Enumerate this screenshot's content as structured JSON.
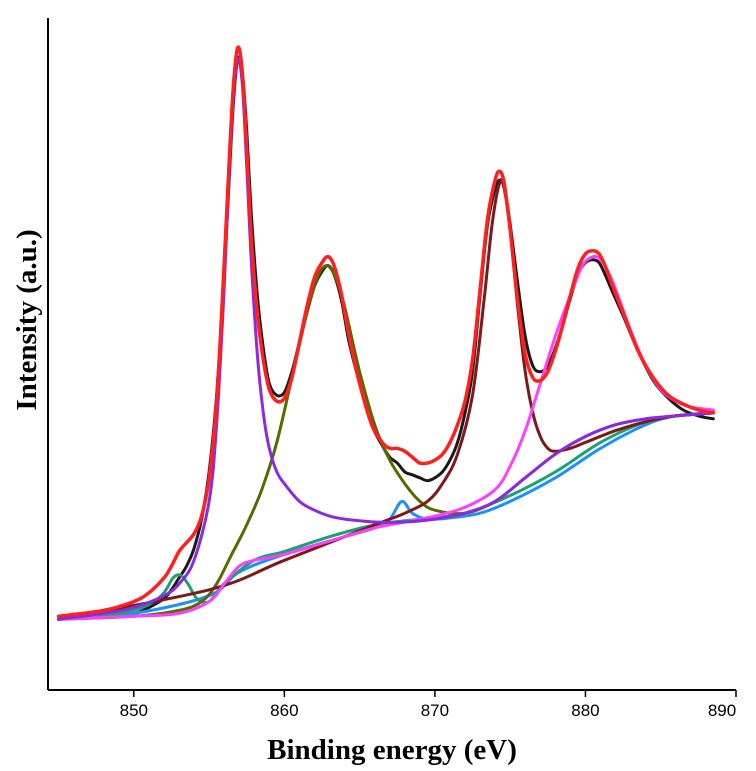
{
  "chart_data": {
    "type": "line",
    "title": "",
    "xlabel": "Binding energy (eV)",
    "ylabel": "Intensity (a.u.)",
    "xlim": [
      844.3,
      890
    ],
    "ylim": [
      -0.12,
      1.02
    ],
    "x_ticks": [
      850,
      860,
      870,
      880,
      890
    ],
    "x_tick_labels": [
      "850",
      "860",
      "870",
      "880",
      "890"
    ],
    "y_tick_labels_shown": false,
    "grid": false,
    "legend": "none",
    "series": [
      {
        "color": "#ff2020",
        "role": "fitted envelope",
        "x": [
          845,
          848,
          850,
          851,
          852,
          852.5,
          853,
          853.5,
          854,
          854.5,
          855,
          855.5,
          856,
          856.3,
          856.6,
          856.9,
          857.2,
          857.5,
          857.8,
          858.2,
          858.6,
          859,
          859.5,
          860,
          860.5,
          861,
          861.5,
          862,
          862.5,
          862.9,
          863.3,
          863.8,
          864.3,
          865,
          865.8,
          866.5,
          867,
          867.5,
          868,
          868.5,
          869,
          869.5,
          870,
          870.5,
          871,
          871.5,
          872,
          872.5,
          873,
          873.5,
          874,
          874.3,
          874.6,
          875,
          875.5,
          876,
          876.5,
          877,
          877.5,
          878,
          878.5,
          879,
          879.5,
          880,
          880.5,
          880.9,
          881.3,
          881.8,
          882.5,
          883.5,
          884.5,
          885.5,
          886.5,
          887.5,
          888.5
        ],
        "y": [
          0.005,
          0.015,
          0.03,
          0.045,
          0.07,
          0.09,
          0.115,
          0.13,
          0.145,
          0.175,
          0.24,
          0.37,
          0.6,
          0.76,
          0.9,
          0.97,
          0.93,
          0.8,
          0.65,
          0.52,
          0.44,
          0.39,
          0.37,
          0.375,
          0.41,
          0.47,
          0.53,
          0.58,
          0.605,
          0.615,
          0.6,
          0.55,
          0.48,
          0.4,
          0.33,
          0.3,
          0.29,
          0.29,
          0.285,
          0.275,
          0.265,
          0.265,
          0.27,
          0.28,
          0.3,
          0.33,
          0.37,
          0.44,
          0.56,
          0.68,
          0.745,
          0.76,
          0.74,
          0.66,
          0.54,
          0.45,
          0.41,
          0.405,
          0.42,
          0.455,
          0.5,
          0.55,
          0.595,
          0.62,
          0.625,
          0.62,
          0.6,
          0.565,
          0.52,
          0.455,
          0.41,
          0.38,
          0.365,
          0.355,
          0.35
        ]
      },
      {
        "color": "#1a1a1a",
        "role": "experimental data",
        "x": [
          845,
          848,
          850,
          851,
          852,
          852.5,
          853,
          853.5,
          854,
          854.5,
          855,
          855.5,
          856,
          856.3,
          856.6,
          856.9,
          857.2,
          857.5,
          857.8,
          858.2,
          858.6,
          859,
          859.5,
          860,
          860.5,
          861,
          861.5,
          862,
          862.5,
          862.9,
          863.3,
          863.8,
          864.3,
          865,
          865.8,
          866.5,
          867,
          867.5,
          868,
          868.5,
          869,
          869.5,
          870,
          870.5,
          871,
          871.5,
          872,
          872.5,
          873,
          873.5,
          874,
          874.3,
          874.6,
          875,
          875.5,
          876,
          876.5,
          877,
          877.5,
          878,
          878.5,
          879,
          879.5,
          880,
          880.5,
          880.9,
          881.3,
          881.8,
          882.5,
          883.5,
          884.5,
          885.5,
          886.5,
          887.5,
          888.5
        ],
        "y": [
          0.0,
          0.005,
          0.01,
          0.02,
          0.035,
          0.05,
          0.07,
          0.09,
          0.12,
          0.17,
          0.25,
          0.38,
          0.58,
          0.73,
          0.87,
          0.95,
          0.93,
          0.83,
          0.69,
          0.55,
          0.46,
          0.4,
          0.38,
          0.385,
          0.42,
          0.47,
          0.52,
          0.565,
          0.59,
          0.6,
          0.585,
          0.54,
          0.47,
          0.4,
          0.33,
          0.295,
          0.275,
          0.265,
          0.25,
          0.245,
          0.24,
          0.235,
          0.24,
          0.25,
          0.27,
          0.3,
          0.35,
          0.42,
          0.55,
          0.67,
          0.73,
          0.745,
          0.735,
          0.67,
          0.57,
          0.48,
          0.43,
          0.42,
          0.43,
          0.46,
          0.5,
          0.545,
          0.585,
          0.605,
          0.61,
          0.605,
          0.585,
          0.555,
          0.515,
          0.455,
          0.405,
          0.375,
          0.355,
          0.345,
          0.34
        ]
      },
      {
        "color": "#8a2be2",
        "role": "fitted component",
        "x": [
          845,
          848,
          850,
          852,
          853,
          854,
          855,
          855.5,
          856,
          856.3,
          856.6,
          856.9,
          857.2,
          857.5,
          857.8,
          858.2,
          858.6,
          859,
          859.5,
          860,
          861,
          862,
          863,
          864,
          866,
          868,
          870,
          872,
          874,
          876,
          878,
          880,
          882,
          884,
          886,
          888.5
        ],
        "y": [
          0.0,
          0.01,
          0.02,
          0.04,
          0.06,
          0.1,
          0.2,
          0.33,
          0.56,
          0.74,
          0.88,
          0.95,
          0.91,
          0.77,
          0.61,
          0.45,
          0.35,
          0.29,
          0.25,
          0.23,
          0.2,
          0.185,
          0.175,
          0.17,
          0.165,
          0.165,
          0.17,
          0.18,
          0.2,
          0.24,
          0.28,
          0.31,
          0.33,
          0.34,
          0.345,
          0.35
        ]
      },
      {
        "color": "#556b00",
        "role": "fitted component",
        "x": [
          845,
          850,
          853,
          854.5,
          855.5,
          856.5,
          857.5,
          858.5,
          859.5,
          860.5,
          861.5,
          862.2,
          862.8,
          863.4,
          864,
          865,
          866,
          867,
          868,
          869,
          870,
          872,
          874,
          876,
          878,
          880,
          882,
          884,
          886,
          888.5
        ],
        "y": [
          0.0,
          0.005,
          0.015,
          0.03,
          0.06,
          0.11,
          0.16,
          0.22,
          0.3,
          0.41,
          0.52,
          0.58,
          0.6,
          0.58,
          0.53,
          0.42,
          0.33,
          0.27,
          0.23,
          0.2,
          0.185,
          0.18,
          0.2,
          0.24,
          0.28,
          0.31,
          0.33,
          0.34,
          0.345,
          0.35
        ]
      },
      {
        "color": "#7a1a1a",
        "role": "fitted component",
        "x": [
          845,
          855,
          860,
          866,
          868,
          869.5,
          870.5,
          871.5,
          872.5,
          873.3,
          873.8,
          874.3,
          874.6,
          875,
          875.5,
          876,
          876.5,
          877,
          877.5,
          878,
          879,
          880,
          882,
          884,
          886,
          888.5
        ],
        "y": [
          0.0,
          0.05,
          0.1,
          0.16,
          0.18,
          0.2,
          0.23,
          0.28,
          0.38,
          0.55,
          0.67,
          0.74,
          0.73,
          0.66,
          0.53,
          0.42,
          0.35,
          0.31,
          0.29,
          0.285,
          0.29,
          0.3,
          0.32,
          0.335,
          0.345,
          0.35
        ]
      },
      {
        "color": "#ff40ff",
        "role": "fitted component",
        "x": [
          845,
          850,
          853,
          855,
          856,
          857,
          858,
          860,
          862,
          864,
          866,
          868,
          870,
          872,
          874,
          875,
          876,
          877,
          878,
          879,
          879.8,
          880.5,
          881,
          881.5,
          882,
          883,
          884,
          885,
          886,
          887,
          888.5
        ],
        "y": [
          0.0,
          0.005,
          0.01,
          0.03,
          0.06,
          0.09,
          0.1,
          0.11,
          0.125,
          0.14,
          0.155,
          0.165,
          0.175,
          0.19,
          0.22,
          0.26,
          0.32,
          0.4,
          0.48,
          0.55,
          0.6,
          0.615,
          0.61,
          0.59,
          0.56,
          0.49,
          0.43,
          0.39,
          0.37,
          0.36,
          0.355
        ]
      },
      {
        "color": "#1e90ff",
        "role": "fitted component",
        "x": [
          845,
          850,
          855,
          857,
          860,
          864,
          866,
          867,
          867.8,
          868.5,
          869.5,
          871,
          873,
          875,
          878,
          881,
          884,
          886,
          888.5
        ],
        "y": [
          0.0,
          0.01,
          0.04,
          0.08,
          0.11,
          0.14,
          0.155,
          0.17,
          0.2,
          0.18,
          0.17,
          0.172,
          0.18,
          0.2,
          0.24,
          0.29,
          0.33,
          0.345,
          0.35
        ]
      },
      {
        "color": "#20a070",
        "role": "fitted component",
        "x": [
          845,
          849,
          851,
          852,
          852.6,
          853.1,
          853.6,
          854.2,
          855,
          856,
          858,
          860,
          863,
          866,
          869,
          872,
          875,
          878,
          881,
          884,
          886,
          888.5
        ],
        "y": [
          0.0,
          0.01,
          0.025,
          0.045,
          0.07,
          0.075,
          0.06,
          0.035,
          0.03,
          0.06,
          0.1,
          0.115,
          0.14,
          0.16,
          0.17,
          0.18,
          0.21,
          0.25,
          0.3,
          0.335,
          0.345,
          0.35
        ]
      }
    ]
  }
}
